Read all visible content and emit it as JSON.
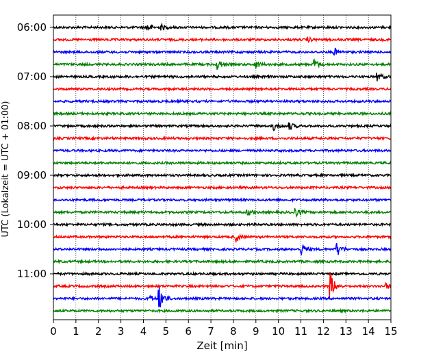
{
  "chart_data": {
    "type": "line",
    "xlabel": "Zeit  [min]",
    "ylabel": "UTC (Lokalzeit = UTC + 01:00)",
    "xlim": [
      0,
      15
    ],
    "x_ticks": [
      0,
      1,
      2,
      3,
      4,
      5,
      6,
      7,
      8,
      9,
      10,
      11,
      12,
      13,
      14,
      15
    ],
    "y_ticks": [
      "06:00",
      "07:00",
      "08:00",
      "09:00",
      "10:00",
      "11:00"
    ],
    "grid": "vertical dotted at each minute",
    "trace_interval_min": 15,
    "color_cycle": [
      "#000000",
      "#ff0000",
      "#0000ff",
      "#008000"
    ],
    "traces": [
      {
        "start": "06:00",
        "color": "#000000",
        "events": [
          {
            "t": 4.2,
            "amp": 0.25
          },
          {
            "t": 4.8,
            "amp": 0.2
          }
        ]
      },
      {
        "start": "06:15",
        "color": "#ff0000",
        "events": [
          {
            "t": 11.3,
            "amp": 0.15
          }
        ]
      },
      {
        "start": "06:30",
        "color": "#0000ff",
        "events": [
          {
            "t": 12.5,
            "amp": 0.25
          }
        ]
      },
      {
        "start": "06:45",
        "color": "#008000",
        "events": [
          {
            "t": 7.3,
            "amp": 0.35
          },
          {
            "t": 9.0,
            "amp": 0.25
          },
          {
            "t": 11.6,
            "amp": 0.35
          }
        ]
      },
      {
        "start": "07:00",
        "color": "#000000",
        "events": [
          {
            "t": 14.4,
            "amp": 0.3
          }
        ]
      },
      {
        "start": "07:15",
        "color": "#ff0000",
        "events": []
      },
      {
        "start": "07:30",
        "color": "#0000ff",
        "events": []
      },
      {
        "start": "07:45",
        "color": "#008000",
        "events": []
      },
      {
        "start": "08:00",
        "color": "#000000",
        "events": [
          {
            "t": 9.8,
            "amp": 0.3
          },
          {
            "t": 10.5,
            "amp": 0.25
          }
        ]
      },
      {
        "start": "08:15",
        "color": "#ff0000",
        "events": []
      },
      {
        "start": "08:30",
        "color": "#0000ff",
        "events": []
      },
      {
        "start": "08:45",
        "color": "#008000",
        "events": []
      },
      {
        "start": "09:00",
        "color": "#000000",
        "events": []
      },
      {
        "start": "09:15",
        "color": "#ff0000",
        "events": []
      },
      {
        "start": "09:30",
        "color": "#0000ff",
        "events": []
      },
      {
        "start": "09:45",
        "color": "#008000",
        "events": [
          {
            "t": 8.6,
            "amp": 0.25
          },
          {
            "t": 10.7,
            "amp": 0.4
          }
        ]
      },
      {
        "start": "10:00",
        "color": "#000000",
        "events": []
      },
      {
        "start": "10:15",
        "color": "#ff0000",
        "events": [
          {
            "t": 8.1,
            "amp": 0.35
          }
        ]
      },
      {
        "start": "10:30",
        "color": "#0000ff",
        "events": [
          {
            "t": 11.0,
            "amp": 0.5
          },
          {
            "t": 12.6,
            "amp": 0.5
          }
        ]
      },
      {
        "start": "10:45",
        "color": "#008000",
        "events": []
      },
      {
        "start": "11:00",
        "color": "#000000",
        "events": []
      },
      {
        "start": "11:15",
        "color": "#ff0000",
        "events": [
          {
            "t": 12.3,
            "amp": 1.0
          },
          {
            "t": 14.8,
            "amp": 0.2
          }
        ]
      },
      {
        "start": "11:30",
        "color": "#0000ff",
        "events": [
          {
            "t": 4.7,
            "amp": 0.85
          },
          {
            "t": 4.3,
            "amp": 0.2
          }
        ]
      },
      {
        "start": "11:45",
        "color": "#008000",
        "events": []
      }
    ]
  }
}
